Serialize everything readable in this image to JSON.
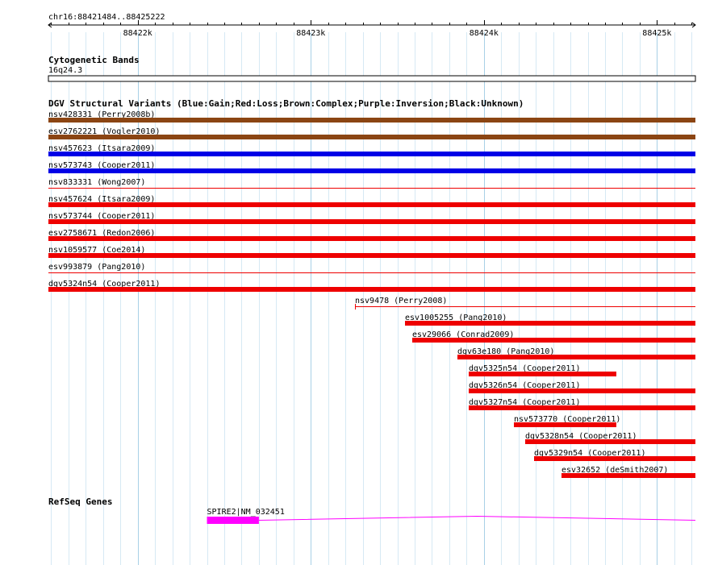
{
  "region": {
    "label": "chr16:88421484..88425222",
    "start": 88421484,
    "end": 88425222
  },
  "ruler": {
    "major_ticks": [
      {
        "pos": 88422000,
        "label": "88422k"
      },
      {
        "pos": 88423000,
        "label": "88423k"
      },
      {
        "pos": 88424000,
        "label": "88424k"
      },
      {
        "pos": 88425000,
        "label": "88425k"
      }
    ],
    "minor_step": 100
  },
  "cytoband": {
    "title": "Cytogenetic Bands",
    "band": "16q24.3"
  },
  "dgv": {
    "title": "DGV Structural Variants (Blue:Gain;Red:Loss;Brown:Complex;Purple:Inversion;Black:Unknown)",
    "colors": {
      "Gain": "#0000e6",
      "Loss": "#ee0000",
      "Complex": "#8b4513",
      "Inversion": "#800080",
      "Unknown": "#000000"
    },
    "variants": [
      {
        "label": "nsv428331 (Perry2008b)",
        "type": "Complex",
        "start": 88421484,
        "end": 88425222,
        "thick": true
      },
      {
        "label": "esv2762221 (Vogler2010)",
        "type": "Complex",
        "start": 88421484,
        "end": 88425222,
        "thick": true
      },
      {
        "label": "nsv457623 (Itsara2009)",
        "type": "Gain",
        "start": 88421484,
        "end": 88425222,
        "thick": true
      },
      {
        "label": "nsv573743 (Cooper2011)",
        "type": "Gain",
        "start": 88421484,
        "end": 88425222,
        "thick": true
      },
      {
        "label": "nsv833331 (Wong2007)",
        "type": "Loss",
        "start": 88421484,
        "end": 88425222,
        "thick": false
      },
      {
        "label": "nsv457624 (Itsara2009)",
        "type": "Loss",
        "start": 88421484,
        "end": 88425222,
        "thick": true
      },
      {
        "label": "nsv573744 (Cooper2011)",
        "type": "Loss",
        "start": 88421484,
        "end": 88425222,
        "thick": true
      },
      {
        "label": "esv2758671 (Redon2006)",
        "type": "Loss",
        "start": 88421484,
        "end": 88425222,
        "thick": true
      },
      {
        "label": "nsv1059577 (Coe2014)",
        "type": "Loss",
        "start": 88421484,
        "end": 88425222,
        "thick": true
      },
      {
        "label": "esv993879 (Pang2010)",
        "type": "Loss",
        "start": 88421484,
        "end": 88425222,
        "thick": false
      },
      {
        "label": "dgv5324n54 (Cooper2011)",
        "type": "Loss",
        "start": 88421484,
        "end": 88425222,
        "thick": true
      },
      {
        "label": "nsv9478 (Perry2008)",
        "type": "Loss",
        "start": 88423255,
        "end": 88425222,
        "thick": false
      },
      {
        "label": "esv1005255 (Pang2010)",
        "type": "Loss",
        "start": 88423545,
        "end": 88425222,
        "thick": true
      },
      {
        "label": "esv29066 (Conrad2009)",
        "type": "Loss",
        "start": 88423585,
        "end": 88425222,
        "thick": true
      },
      {
        "label": "dgv63e180 (Pang2010)",
        "type": "Loss",
        "start": 88423845,
        "end": 88425222,
        "thick": true
      },
      {
        "label": "dgv5325n54 (Cooper2011)",
        "type": "Loss",
        "start": 88423910,
        "end": 88424765,
        "thick": true
      },
      {
        "label": "dgv5326n54 (Cooper2011)",
        "type": "Loss",
        "start": 88423910,
        "end": 88425222,
        "thick": true
      },
      {
        "label": "dgv5327n54 (Cooper2011)",
        "type": "Loss",
        "start": 88423910,
        "end": 88425222,
        "thick": true
      },
      {
        "label": "nsv573770 (Cooper2011)",
        "type": "Loss",
        "start": 88424175,
        "end": 88424765,
        "thick": true
      },
      {
        "label": "dgv5328n54 (Cooper2011)",
        "type": "Loss",
        "start": 88424240,
        "end": 88425222,
        "thick": true
      },
      {
        "label": "dgv5329n54 (Cooper2011)",
        "type": "Loss",
        "start": 88424290,
        "end": 88425222,
        "thick": true
      },
      {
        "label": "esv32652 (deSmith2007)",
        "type": "Loss",
        "start": 88424450,
        "end": 88425222,
        "thick": true
      }
    ]
  },
  "refseq": {
    "title": "RefSeq Genes",
    "gene_label": "SPIRE2|NM_032451",
    "color": "#ff00ff",
    "exon": {
      "start": 88422400,
      "end": 88422700
    },
    "intron": {
      "start": 88422700,
      "end": 88425222
    }
  }
}
